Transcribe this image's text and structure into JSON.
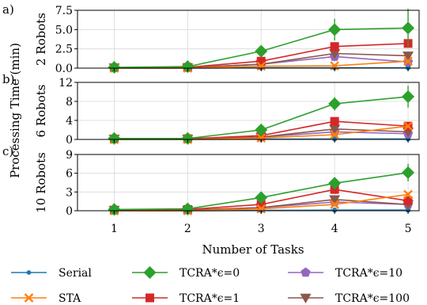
{
  "chart_data": {
    "type": "line",
    "ylabel_shared": "Processing Time (min)",
    "xlabel": "Number of Tasks",
    "x": [
      1,
      2,
      3,
      4,
      5
    ],
    "x_ticks": [
      "1",
      "2",
      "3",
      "4",
      "5"
    ],
    "xlim": [
      0.5,
      5.15
    ],
    "grid": true,
    "legend": {
      "placement": "bottom",
      "entries": [
        {
          "label": "Serial",
          "color": "#1f77b4",
          "marker": "circle"
        },
        {
          "label": "STA",
          "color": "#ff7f0e",
          "marker": "x"
        },
        {
          "label": "TCRA*ϵ=0",
          "color": "#2ca02c",
          "marker": "diamond"
        },
        {
          "label": "TCRA*ϵ=1",
          "color": "#d62728",
          "marker": "square"
        },
        {
          "label": "TCRA*ϵ=10",
          "color": "#9467bd",
          "marker": "pentagon"
        },
        {
          "label": "TCRA*ϵ=100",
          "color": "#8c564b",
          "marker": "triangle-down"
        }
      ]
    },
    "panels": [
      {
        "label": "a)",
        "ylabel": "2 Robots",
        "ylim": [
          0,
          7.5
        ],
        "yticks": [
          0.0,
          2.5,
          5.0,
          7.5
        ],
        "ytick_labels": [
          "0.0",
          "2.5",
          "5.0",
          "7.5"
        ],
        "series": [
          {
            "name": "Serial",
            "values": [
              0.0,
              0.0,
              0.05,
              0.05,
              0.05
            ],
            "err": [
              0,
              0,
              0,
              0,
              0
            ]
          },
          {
            "name": "STA",
            "values": [
              0.0,
              0.0,
              0.25,
              0.3,
              0.9
            ],
            "err": [
              0,
              0,
              0,
              0,
              0
            ]
          },
          {
            "name": "TCRA*ϵ=0",
            "values": [
              0.1,
              0.2,
              2.2,
              5.0,
              5.2
            ],
            "err": [
              0,
              0,
              0.3,
              1.4,
              2.5
            ]
          },
          {
            "name": "TCRA*ϵ=1",
            "values": [
              0.05,
              0.1,
              0.9,
              2.8,
              3.2
            ],
            "err": [
              0,
              0,
              0,
              0.5,
              0.5
            ]
          },
          {
            "name": "TCRA*ϵ=10",
            "values": [
              0.05,
              0.05,
              0.5,
              1.5,
              0.8
            ],
            "err": [
              0,
              0,
              0,
              0.6,
              0.4
            ]
          },
          {
            "name": "TCRA*ϵ=100",
            "values": [
              0.05,
              0.05,
              0.5,
              1.9,
              1.6
            ],
            "err": [
              0,
              0,
              0,
              0.6,
              0.5
            ]
          }
        ]
      },
      {
        "label": "b)",
        "ylabel": "6 Robots",
        "ylim": [
          0,
          12
        ],
        "yticks": [
          0,
          4,
          8,
          12
        ],
        "ytick_labels": [
          "0",
          "4",
          "8",
          "12"
        ],
        "series": [
          {
            "name": "Serial",
            "values": [
              0.0,
              0.0,
              0.05,
              0.1,
              0.1
            ],
            "err": [
              0,
              0,
              0,
              0,
              0
            ]
          },
          {
            "name": "STA",
            "values": [
              0.0,
              0.0,
              0.3,
              1.0,
              2.8
            ],
            "err": [
              0,
              0,
              0,
              0,
              0
            ]
          },
          {
            "name": "TCRA*ϵ=0",
            "values": [
              0.2,
              0.2,
              2.0,
              7.5,
              9.0
            ],
            "err": [
              0,
              0,
              0.5,
              1.4,
              2.3
            ]
          },
          {
            "name": "TCRA*ϵ=1",
            "values": [
              0.1,
              0.15,
              0.8,
              3.8,
              2.8
            ],
            "err": [
              0,
              0,
              0,
              0.8,
              0.6
            ]
          },
          {
            "name": "TCRA*ϵ=10",
            "values": [
              0.1,
              0.1,
              0.5,
              1.6,
              1.2
            ],
            "err": [
              0,
              0,
              0,
              0.5,
              0.4
            ]
          },
          {
            "name": "TCRA*ϵ=100",
            "values": [
              0.1,
              0.1,
              0.5,
              2.2,
              1.6
            ],
            "err": [
              0,
              0,
              0,
              0.6,
              0.5
            ]
          }
        ]
      },
      {
        "label": "c)",
        "ylabel": "10 Robots",
        "ylim": [
          0,
          9
        ],
        "yticks": [
          0,
          3,
          6,
          9
        ],
        "ytick_labels": [
          "0",
          "3",
          "6",
          "9"
        ],
        "series": [
          {
            "name": "Serial",
            "values": [
              0.0,
              0.0,
              0.05,
              0.1,
              0.1
            ],
            "err": [
              0,
              0,
              0,
              0,
              0
            ]
          },
          {
            "name": "STA",
            "values": [
              0.0,
              0.0,
              0.3,
              1.0,
              2.6
            ],
            "err": [
              0,
              0,
              0,
              0,
              0
            ]
          },
          {
            "name": "TCRA*ϵ=0",
            "values": [
              0.2,
              0.3,
              2.1,
              4.4,
              6.1
            ],
            "err": [
              0,
              0,
              0.4,
              0.8,
              1.4
            ]
          },
          {
            "name": "TCRA*ϵ=1",
            "values": [
              0.1,
              0.2,
              1.0,
              3.4,
              1.6
            ],
            "err": [
              0,
              0,
              0,
              0.6,
              0.5
            ]
          },
          {
            "name": "TCRA*ϵ=10",
            "values": [
              0.1,
              0.1,
              0.5,
              1.4,
              1.0
            ],
            "err": [
              0,
              0,
              0,
              0.4,
              0.3
            ]
          },
          {
            "name": "TCRA*ϵ=100",
            "values": [
              0.1,
              0.1,
              0.5,
              1.8,
              1.0
            ],
            "err": [
              0,
              0,
              0,
              0.5,
              0.4
            ]
          }
        ]
      }
    ]
  }
}
